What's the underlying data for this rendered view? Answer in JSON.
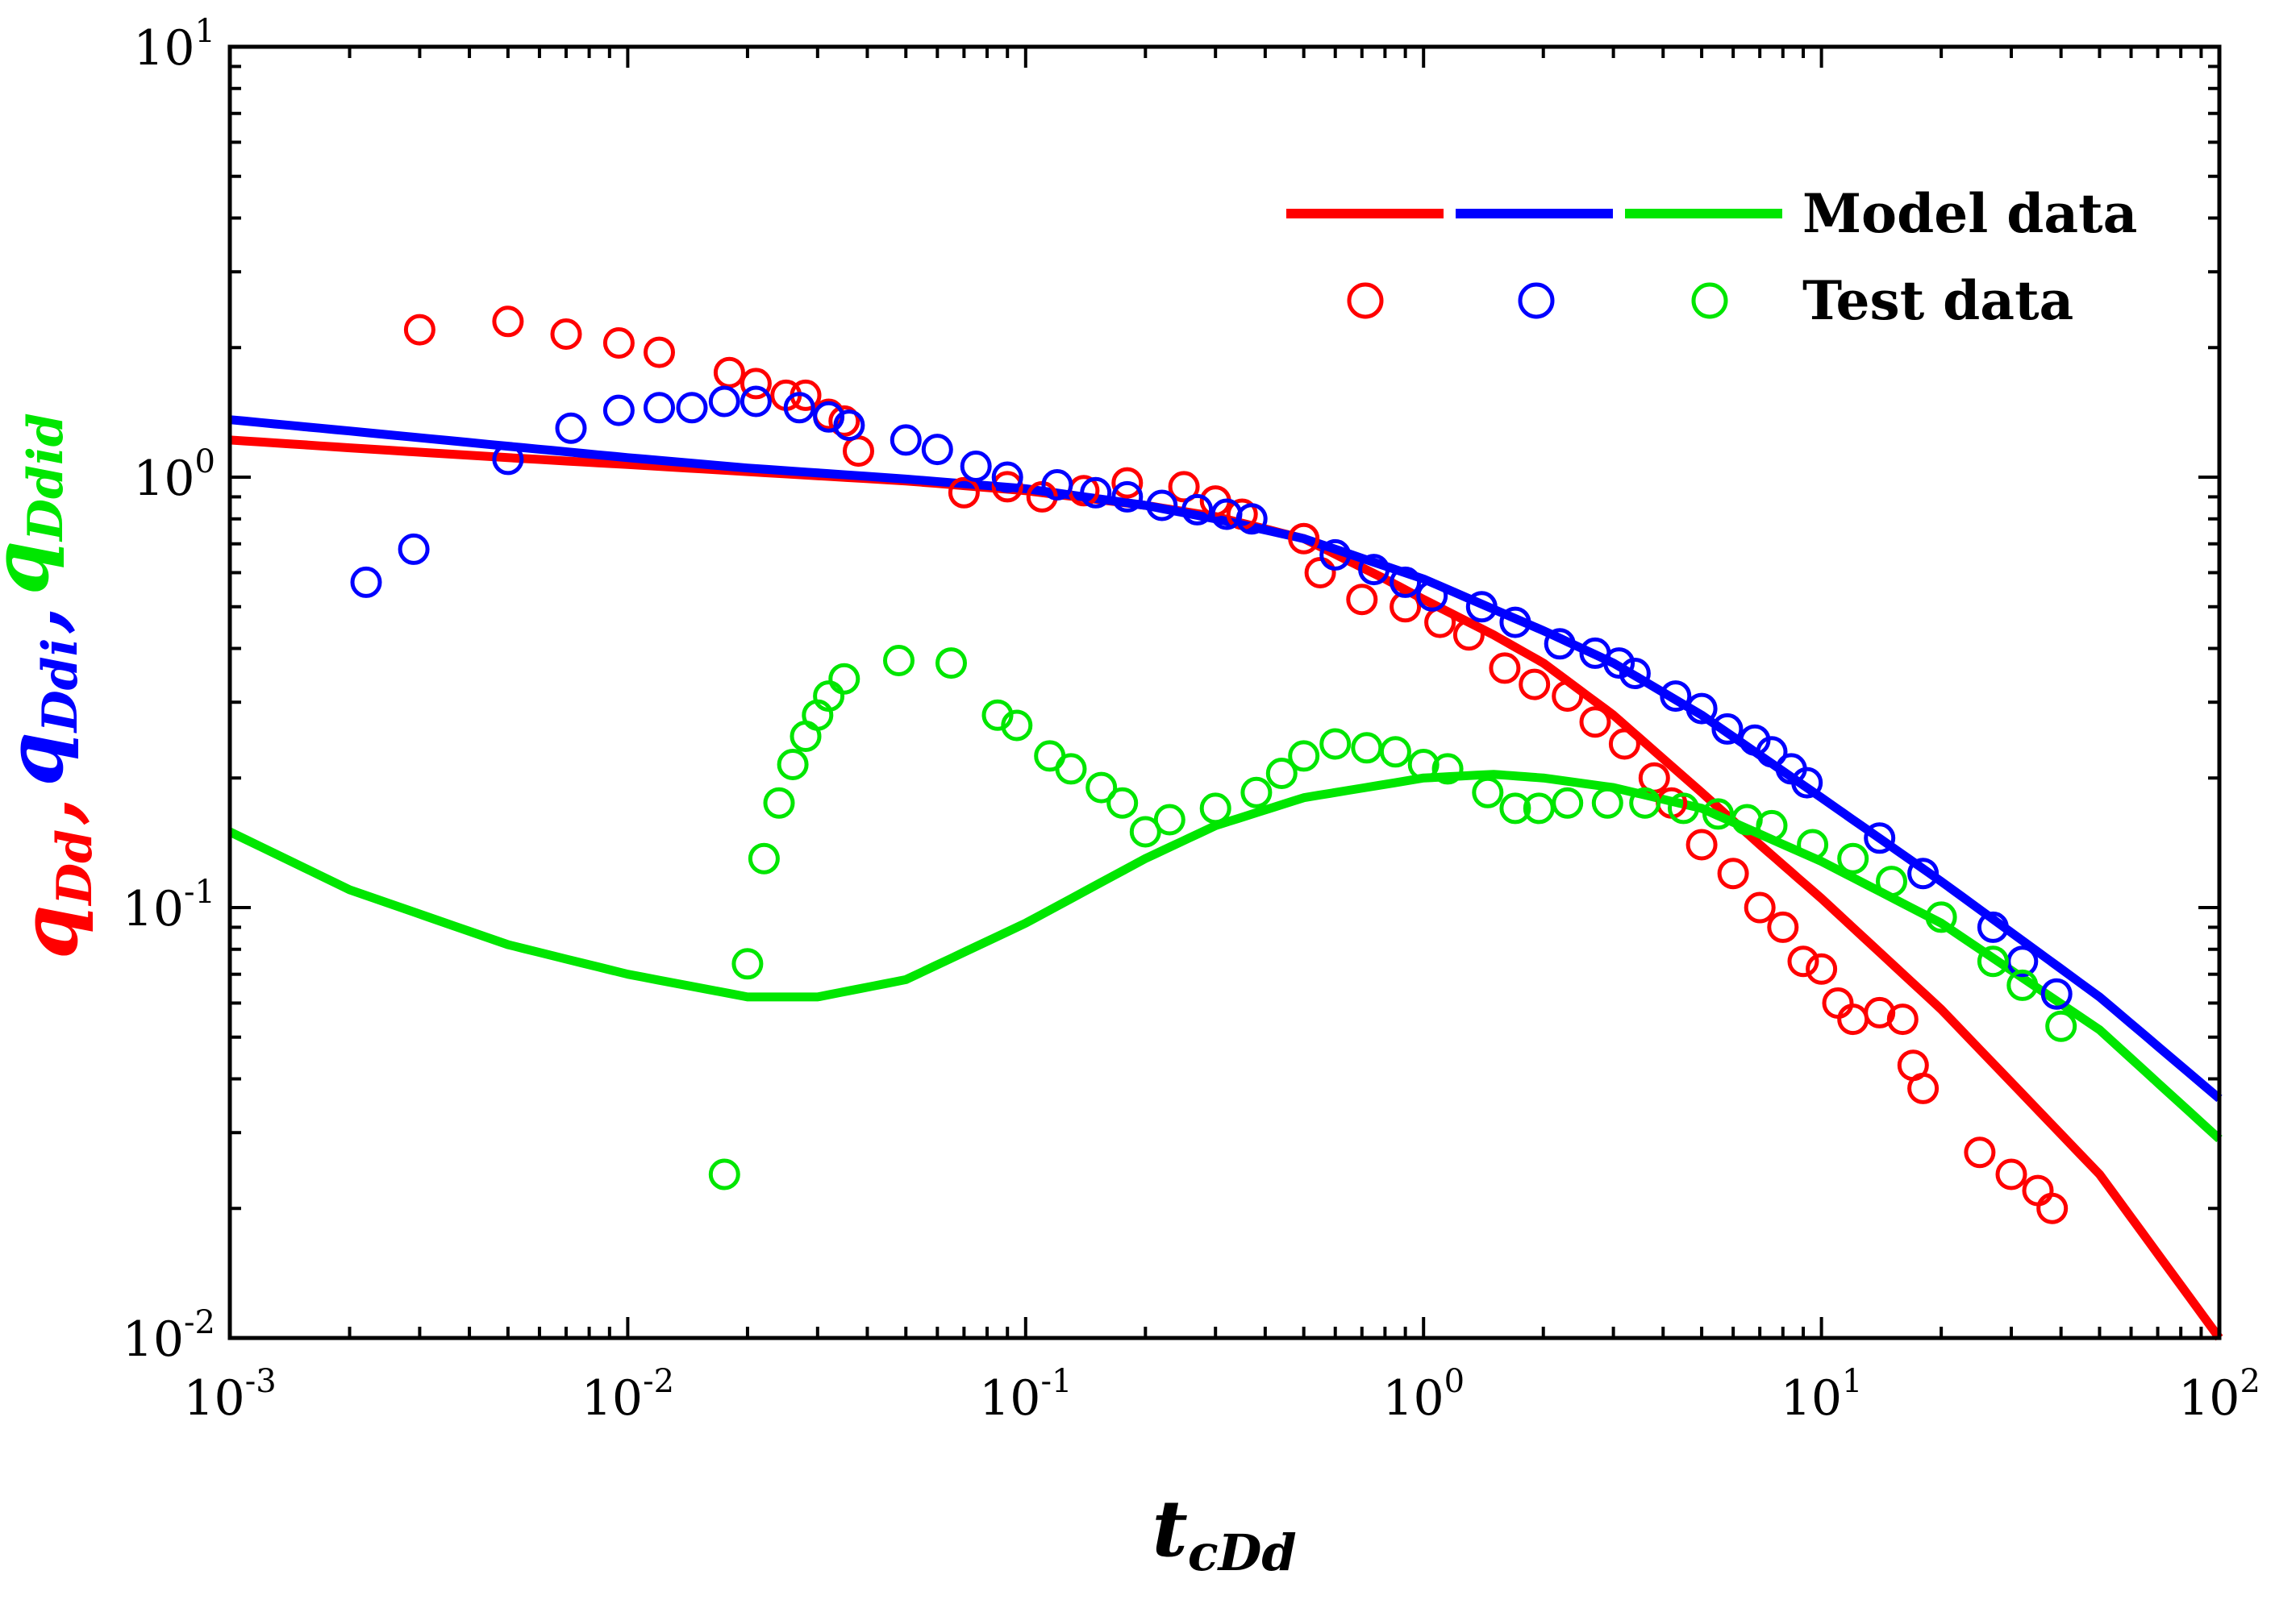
{
  "chart_data": {
    "type": "line",
    "title": "",
    "x_scale": "log",
    "y_scale": "log",
    "xlim": [
      0.001,
      100
    ],
    "ylim": [
      0.01,
      10
    ],
    "x_ticks": [
      {
        "value": 0.001,
        "base": "10",
        "exp": "-3"
      },
      {
        "value": 0.01,
        "base": "10",
        "exp": "-2"
      },
      {
        "value": 0.1,
        "base": "10",
        "exp": "-1"
      },
      {
        "value": 1,
        "base": "10",
        "exp": "0"
      },
      {
        "value": 10,
        "base": "10",
        "exp": "1"
      },
      {
        "value": 100,
        "base": "10",
        "exp": "2"
      }
    ],
    "y_ticks": [
      {
        "value": 0.01,
        "base": "10",
        "exp": "-2"
      },
      {
        "value": 0.1,
        "base": "10",
        "exp": "-1"
      },
      {
        "value": 1,
        "base": "10",
        "exp": "0"
      },
      {
        "value": 10,
        "base": "10",
        "exp": "1"
      }
    ],
    "xlabel": {
      "main": "t",
      "sub": "cDd"
    },
    "ylabel": [
      {
        "main": "q",
        "sub": "Dd",
        "color": "#ff0000"
      },
      {
        "sep": ","
      },
      {
        "main": "q",
        "sub": "Ddi",
        "color": "#0000ff"
      },
      {
        "sep": ","
      },
      {
        "main": "q",
        "sub": "Ddid",
        "color": "#00e600"
      }
    ],
    "legend": {
      "position": "top-right",
      "model_label": "Model data",
      "test_label": "Test data"
    },
    "model_series": [
      {
        "name": "qDd",
        "color": "#ff0000",
        "x": [
          0.001,
          0.002,
          0.005,
          0.01,
          0.02,
          0.05,
          0.1,
          0.2,
          0.3,
          0.5,
          0.8,
          1,
          1.5,
          2,
          3,
          5,
          7,
          10,
          20,
          50,
          100
        ],
        "y": [
          1.22,
          1.17,
          1.11,
          1.07,
          1.03,
          0.98,
          0.93,
          0.86,
          0.81,
          0.72,
          0.58,
          0.52,
          0.43,
          0.37,
          0.28,
          0.185,
          0.14,
          0.105,
          0.058,
          0.024,
          0.01
        ]
      },
      {
        "name": "qDdi",
        "color": "#0000ff",
        "x": [
          0.001,
          0.002,
          0.005,
          0.01,
          0.02,
          0.05,
          0.1,
          0.2,
          0.3,
          0.5,
          1,
          2,
          3,
          5,
          10,
          20,
          50,
          100
        ],
        "y": [
          1.36,
          1.28,
          1.18,
          1.11,
          1.05,
          0.99,
          0.94,
          0.86,
          0.8,
          0.72,
          0.58,
          0.44,
          0.37,
          0.28,
          0.18,
          0.115,
          0.062,
          0.036
        ]
      },
      {
        "name": "qDdid",
        "color": "#00e600",
        "x": [
          0.001,
          0.002,
          0.005,
          0.01,
          0.02,
          0.03,
          0.05,
          0.1,
          0.2,
          0.3,
          0.5,
          1,
          1.5,
          2,
          3,
          5,
          10,
          20,
          50,
          100
        ],
        "y": [
          0.15,
          0.11,
          0.082,
          0.07,
          0.062,
          0.062,
          0.068,
          0.092,
          0.13,
          0.155,
          0.18,
          0.2,
          0.204,
          0.2,
          0.19,
          0.17,
          0.128,
          0.092,
          0.052,
          0.029
        ]
      }
    ],
    "test_series": [
      {
        "name": "qDd",
        "color": "#ff0000",
        "x": [
          0.003,
          0.005,
          0.007,
          0.0095,
          0.012,
          0.018,
          0.021,
          0.025,
          0.028,
          0.032,
          0.035,
          0.038,
          0.07,
          0.09,
          0.11,
          0.14,
          0.18,
          0.25,
          0.3,
          0.35,
          0.5,
          0.55,
          0.7,
          0.9,
          1.1,
          1.3,
          1.6,
          1.9,
          2.3,
          2.7,
          3.2,
          3.8,
          4.2,
          5,
          6,
          7,
          8,
          9,
          10,
          11,
          12,
          14,
          16,
          17,
          18,
          25,
          30,
          35,
          38
        ],
        "y": [
          2.2,
          2.3,
          2.15,
          2.05,
          1.95,
          1.75,
          1.65,
          1.55,
          1.55,
          1.4,
          1.35,
          1.15,
          0.92,
          0.95,
          0.9,
          0.93,
          0.97,
          0.95,
          0.88,
          0.82,
          0.72,
          0.6,
          0.52,
          0.5,
          0.46,
          0.43,
          0.36,
          0.33,
          0.31,
          0.27,
          0.24,
          0.2,
          0.175,
          0.14,
          0.12,
          0.1,
          0.09,
          0.075,
          0.072,
          0.06,
          0.055,
          0.057,
          0.055,
          0.043,
          0.038,
          0.027,
          0.024,
          0.022,
          0.02
        ]
      },
      {
        "name": "qDdi",
        "color": "#0000ff",
        "x": [
          0.0022,
          0.0029,
          0.005,
          0.0072,
          0.0095,
          0.012,
          0.0145,
          0.0175,
          0.021,
          0.027,
          0.032,
          0.036,
          0.05,
          0.06,
          0.075,
          0.09,
          0.12,
          0.15,
          0.18,
          0.22,
          0.27,
          0.32,
          0.37,
          0.6,
          0.75,
          0.9,
          1.05,
          1.4,
          1.7,
          2.2,
          2.7,
          3.1,
          3.4,
          4.3,
          5,
          5.8,
          6.8,
          7.5,
          8.4,
          9.2,
          14,
          18,
          27,
          32,
          39
        ],
        "y": [
          0.57,
          0.68,
          1.1,
          1.3,
          1.43,
          1.45,
          1.45,
          1.5,
          1.5,
          1.45,
          1.38,
          1.32,
          1.22,
          1.16,
          1.06,
          1.0,
          0.96,
          0.92,
          0.9,
          0.86,
          0.84,
          0.82,
          0.8,
          0.66,
          0.61,
          0.57,
          0.53,
          0.5,
          0.46,
          0.41,
          0.39,
          0.37,
          0.35,
          0.31,
          0.29,
          0.26,
          0.245,
          0.23,
          0.21,
          0.195,
          0.145,
          0.12,
          0.09,
          0.075,
          0.063
        ]
      },
      {
        "name": "qDdid",
        "color": "#00e600",
        "x": [
          0.0175,
          0.02,
          0.022,
          0.024,
          0.026,
          0.028,
          0.03,
          0.032,
          0.035,
          0.048,
          0.065,
          0.085,
          0.095,
          0.115,
          0.13,
          0.155,
          0.175,
          0.2,
          0.23,
          0.3,
          0.38,
          0.44,
          0.5,
          0.6,
          0.72,
          0.85,
          1.0,
          1.15,
          1.45,
          1.7,
          1.95,
          2.3,
          2.9,
          3.6,
          4.5,
          5.5,
          6.5,
          7.5,
          9.5,
          12,
          15,
          20,
          27,
          32,
          40
        ],
        "y": [
          0.024,
          0.074,
          0.13,
          0.175,
          0.215,
          0.25,
          0.28,
          0.31,
          0.34,
          0.375,
          0.37,
          0.28,
          0.265,
          0.225,
          0.21,
          0.19,
          0.175,
          0.15,
          0.16,
          0.17,
          0.185,
          0.205,
          0.225,
          0.24,
          0.235,
          0.23,
          0.215,
          0.21,
          0.185,
          0.17,
          0.17,
          0.175,
          0.175,
          0.175,
          0.17,
          0.165,
          0.16,
          0.155,
          0.14,
          0.13,
          0.115,
          0.095,
          0.075,
          0.066,
          0.053
        ]
      }
    ]
  }
}
